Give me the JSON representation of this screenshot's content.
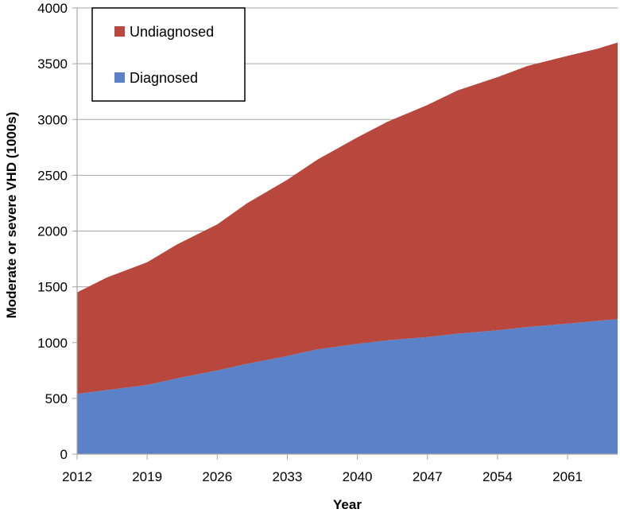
{
  "chart_data": {
    "type": "area",
    "stacked": true,
    "x": [
      2012,
      2015,
      2019,
      2022,
      2026,
      2029,
      2033,
      2036,
      2040,
      2043,
      2047,
      2050,
      2054,
      2057,
      2061,
      2064,
      2066
    ],
    "series": [
      {
        "name": "Diagnosed",
        "color": "#5b82c8",
        "values": [
          540,
          575,
          620,
          680,
          750,
          810,
          880,
          940,
          990,
          1020,
          1050,
          1080,
          1110,
          1140,
          1170,
          1195,
          1210
        ]
      },
      {
        "name": "Undiagnosed",
        "color": "#b8473d",
        "values": [
          910,
          1010,
          1100,
          1200,
          1310,
          1440,
          1580,
          1700,
          1850,
          1960,
          2080,
          2180,
          2270,
          2340,
          2400,
          2440,
          2480
        ]
      }
    ],
    "xlabel": "Year",
    "ylabel": "Moderate or severe VHD (1000s)",
    "xlim": [
      2012,
      2066
    ],
    "ylim": [
      0,
      4000
    ],
    "x_ticks": [
      "2012",
      "2019",
      "2026",
      "2033",
      "2040",
      "2047",
      "2054",
      "2061"
    ],
    "y_ticks": [
      "0",
      "500",
      "1000",
      "1500",
      "2000",
      "2500",
      "3000",
      "3500",
      "4000"
    ],
    "grid": "horizontal",
    "legend_position": "top-left",
    "legend_order": [
      "Undiagnosed",
      "Diagnosed"
    ]
  }
}
